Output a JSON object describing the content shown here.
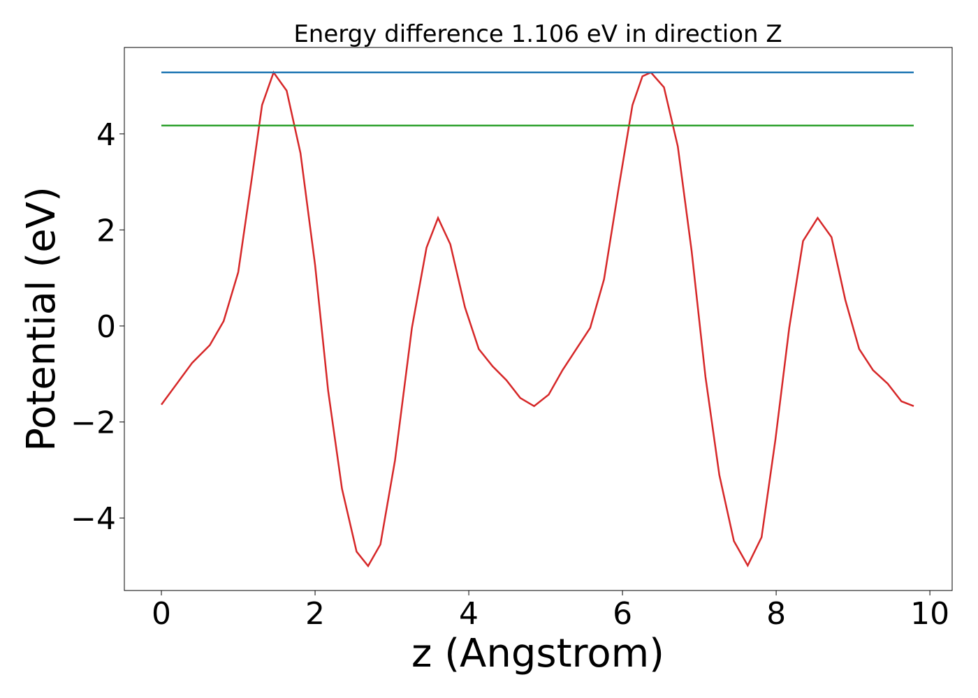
{
  "chart_data": {
    "type": "line",
    "title": "Energy difference 1.106 eV in direction Z",
    "xlabel": "z (Angstrom)",
    "ylabel": "Potential (eV)",
    "xlim": [
      -0.482,
      10.29
    ],
    "ylim": [
      -5.51,
      5.8
    ],
    "xticks": [
      0,
      2,
      4,
      6,
      8,
      10
    ],
    "yticks": [
      {
        "value": -4,
        "label": "−4"
      },
      {
        "value": -2,
        "label": "−2"
      },
      0,
      2,
      4
    ],
    "series": [
      {
        "color": "#d62728",
        "x": [
          0,
          0.4,
          0.63,
          0.81,
          1.0,
          1.17,
          1.31,
          1.46,
          1.63,
          1.81,
          2.0,
          2.17,
          2.35,
          2.54,
          2.69,
          2.85,
          3.04,
          3.26,
          3.45,
          3.6,
          3.76,
          3.95,
          4.13,
          4.31,
          4.49,
          4.67,
          4.85,
          5.04,
          5.22,
          5.4,
          5.58,
          5.76,
          5.95,
          6.13,
          6.26,
          6.37,
          6.54,
          6.72,
          6.9,
          7.08,
          7.26,
          7.45,
          7.63,
          7.81,
          7.99,
          8.17,
          8.35,
          8.54,
          8.72,
          8.9,
          9.08,
          9.26,
          9.45,
          9.63,
          9.79
        ],
        "values": [
          -1.64,
          -0.77,
          -0.4,
          0.1,
          1.12,
          3.0,
          4.6,
          5.28,
          4.9,
          3.6,
          1.27,
          -1.35,
          -3.39,
          -4.7,
          -5.0,
          -4.55,
          -2.8,
          -0.04,
          1.63,
          2.25,
          1.7,
          0.39,
          -0.48,
          -0.84,
          -1.13,
          -1.5,
          -1.67,
          -1.43,
          -0.92,
          -0.48,
          -0.04,
          0.97,
          2.87,
          4.6,
          5.2,
          5.28,
          4.97,
          3.74,
          1.56,
          -1.06,
          -3.1,
          -4.48,
          -4.99,
          -4.4,
          -2.37,
          -0.04,
          1.77,
          2.25,
          1.85,
          0.54,
          -0.48,
          -0.92,
          -1.2,
          -1.57,
          -1.67
        ]
      },
      {
        "color": "#1f77b4",
        "x": [
          0,
          9.79
        ],
        "values": [
          5.28,
          5.28
        ]
      },
      {
        "color": "#2ca02c",
        "x": [
          0,
          9.79
        ],
        "values": [
          4.174,
          4.174
        ]
      }
    ]
  }
}
